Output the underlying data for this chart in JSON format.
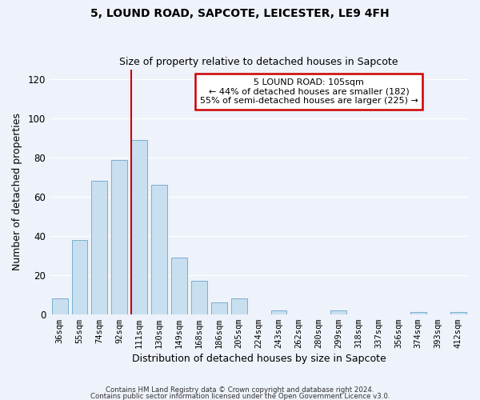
{
  "title": "5, LOUND ROAD, SAPCOTE, LEICESTER, LE9 4FH",
  "subtitle": "Size of property relative to detached houses in Sapcote",
  "xlabel": "Distribution of detached houses by size in Sapcote",
  "ylabel": "Number of detached properties",
  "bar_color": "#c8dff0",
  "bar_edge_color": "#7aaecf",
  "background_color": "#eef2fa",
  "grid_color": "#ffffff",
  "categories": [
    "36sqm",
    "55sqm",
    "74sqm",
    "92sqm",
    "111sqm",
    "130sqm",
    "149sqm",
    "168sqm",
    "186sqm",
    "205sqm",
    "224sqm",
    "243sqm",
    "262sqm",
    "280sqm",
    "299sqm",
    "318sqm",
    "337sqm",
    "356sqm",
    "374sqm",
    "393sqm",
    "412sqm"
  ],
  "values": [
    8,
    38,
    68,
    79,
    89,
    66,
    29,
    17,
    6,
    8,
    0,
    2,
    0,
    0,
    2,
    0,
    0,
    0,
    1,
    0,
    1
  ],
  "ylim": [
    0,
    125
  ],
  "yticks": [
    0,
    20,
    40,
    60,
    80,
    100,
    120
  ],
  "vline_x_idx": 3,
  "vline_color": "#cc0000",
  "annotation_text": "5 LOUND ROAD: 105sqm\n← 44% of detached houses are smaller (182)\n55% of semi-detached houses are larger (225) →",
  "annotation_box_color": "#ffffff",
  "annotation_box_edge": "#cc0000",
  "footer_line1": "Contains HM Land Registry data © Crown copyright and database right 2024.",
  "footer_line2": "Contains public sector information licensed under the Open Government Licence v3.0."
}
